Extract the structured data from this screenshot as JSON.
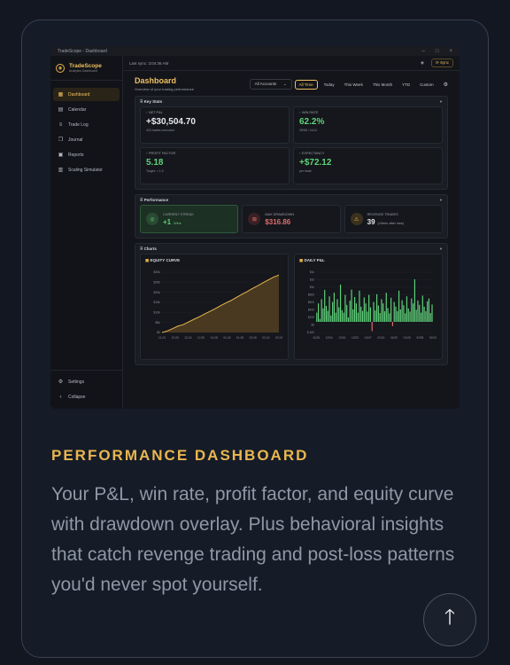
{
  "window": {
    "title": "TradeScope - Dashboard",
    "controls": [
      "–",
      "□",
      "×"
    ]
  },
  "brand": {
    "name": "TradeScope",
    "subtitle": "Analytics Dashboard"
  },
  "sidebar": {
    "items": [
      {
        "label": "Dashboard",
        "icon": "grid-icon",
        "glyph": "▦",
        "active": true
      },
      {
        "label": "Calendar",
        "icon": "calendar-icon",
        "glyph": "▤"
      },
      {
        "label": "Trade Log",
        "icon": "list-icon",
        "glyph": "≡"
      },
      {
        "label": "Journal",
        "icon": "journal-icon",
        "glyph": "❐"
      },
      {
        "label": "Reports",
        "icon": "report-icon",
        "glyph": "▣"
      },
      {
        "label": "Scaling Simulator",
        "icon": "simulator-icon",
        "glyph": "▥"
      }
    ],
    "settings_label": "Settings",
    "collapse_label": "Collapse"
  },
  "topbar": {
    "last_sync": "Last sync: 3:04:36 AM",
    "sync_label": "Sync"
  },
  "dashboard": {
    "title": "Dashboard",
    "subtitle": "Overview of your trading performance",
    "account_select": "All Accounts",
    "filters": [
      "All Time",
      "Today",
      "This Week",
      "This Month",
      "YTD",
      "Custom"
    ],
    "active_filter": "All Time"
  },
  "key_stats": {
    "title": "Key Stats",
    "cards": [
      {
        "label": "NET P&L",
        "value": "+$30,504.70",
        "sub": "423 trades executed",
        "color": "#e6e9ee"
      },
      {
        "label": "WIN RATE",
        "value": "62.2%",
        "sub": "28/58 / 16.0L",
        "color": "#5fd17a"
      },
      {
        "label": "PROFIT FACTOR",
        "value": "5.18",
        "sub": "Target: > 1.5",
        "color": "#5fd17a"
      },
      {
        "label": "EXPECTANCY",
        "value": "+$72.12",
        "sub": "per trade",
        "color": "#5fd17a"
      }
    ]
  },
  "performance": {
    "title": "Performance",
    "cards": [
      {
        "label": "CURRENT STREAK",
        "value": "+1",
        "suffix": "Wins",
        "icon": "streak-icon",
        "glyph": "◎",
        "color": "#5fd17a"
      },
      {
        "label": "MAX DRAWDOWN",
        "value": "$316.86",
        "suffix": "",
        "icon": "drawdown-icon",
        "glyph": "⊠",
        "color": "#e06c6c"
      },
      {
        "label": "REVENGE TRADES",
        "value": "39",
        "suffix": "(<5min after loss)",
        "icon": "warning-icon",
        "glyph": "⚠",
        "color": "#e6e9ee"
      }
    ]
  },
  "charts": {
    "title": "Charts",
    "equity": {
      "title": "EQUITY CURVE",
      "y_ticks": [
        "$0",
        "$5k",
        "$10k",
        "$15k",
        "$20k",
        "$25k",
        "$30k"
      ],
      "x_ticks": [
        "11-24",
        "12-05",
        "12-16",
        "12-30",
        "01-08",
        "01-18",
        "01-28",
        "02-06",
        "02-15",
        "02-24"
      ],
      "ylim": [
        0,
        32000
      ],
      "values": [
        0,
        800,
        2100,
        3400,
        4200,
        5600,
        7000,
        8300,
        9800,
        11200,
        12600,
        14200,
        15700,
        17000,
        18600,
        20200,
        21700,
        23300,
        24800,
        26400,
        27900,
        29400,
        30504.7
      ]
    },
    "daily": {
      "title": "DAILY P&L",
      "y_ticks": [
        "$-300",
        "$0",
        "$200",
        "$400",
        "$600",
        "$800",
        "$1k",
        "$1k",
        "$1k"
      ],
      "x_ticks": [
        "11/28",
        "12/04",
        "12/16",
        "12/23",
        "01/07",
        "01/13",
        "01/20",
        "01/28",
        "02/05",
        "02/10"
      ],
      "values": [
        260,
        520,
        80,
        640,
        380,
        900,
        450,
        310,
        720,
        180,
        560,
        820,
        260,
        640,
        410,
        1050,
        330,
        260,
        760,
        480,
        120,
        600,
        910,
        350,
        700,
        520,
        260,
        880,
        430,
        310,
        690,
        520,
        290,
        760,
        410,
        -260,
        560,
        320,
        780,
        460,
        250,
        640,
        520,
        300,
        820,
        390,
        240,
        680,
        -120,
        560,
        430,
        300,
        880,
        350,
        610,
        470,
        240,
        720,
        380,
        290,
        660,
        520,
        1200,
        340,
        600,
        480,
        260,
        740,
        430,
        300,
        580,
        660,
        250,
        490
      ]
    }
  },
  "feature": {
    "heading": "PERFORMANCE DASHBOARD",
    "description": "Your P&L, win rate, profit factor, and equity curve with drawdown overlay. Plus behavioral insights that catch revenge trading and post-loss patterns you'd never spot yourself."
  },
  "colors": {
    "accent": "#e9b64f",
    "positive": "#5fd17a",
    "negative": "#e06c6c"
  }
}
